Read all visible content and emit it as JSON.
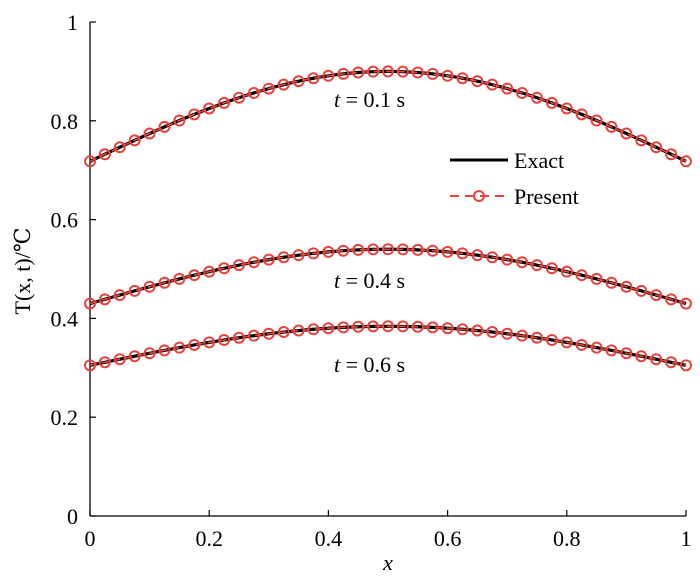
{
  "chart_data": {
    "type": "line",
    "xlabel": "x",
    "ylabel": "T(x, t)/℃",
    "xlim": [
      0,
      1
    ],
    "ylim": [
      0,
      1
    ],
    "xticks": [
      "0",
      "0.2",
      "0.4",
      "0.6",
      "0.8",
      "1"
    ],
    "yticks": [
      "0",
      "0.2",
      "0.4",
      "0.6",
      "0.8",
      "1"
    ],
    "legend": {
      "position": "right",
      "entries": [
        "Exact",
        "Present"
      ]
    },
    "colors": {
      "exact": "#000000",
      "present": "#e8423c"
    },
    "curves": [
      {
        "t_label": "0.1",
        "unit": "s",
        "edge": 0.718,
        "peak": 0.9
      },
      {
        "t_label": "0.4",
        "unit": "s",
        "edge": 0.43,
        "peak": 0.54
      },
      {
        "t_label": "0.6",
        "unit": "s",
        "edge": 0.305,
        "peak": 0.384
      }
    ],
    "marker_count": 41,
    "annotation_prefix": "t",
    "annotation_eq": " = "
  }
}
